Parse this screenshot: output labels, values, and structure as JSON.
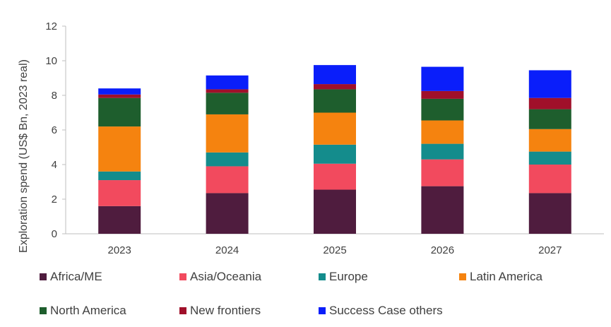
{
  "chart_data": {
    "type": "bar",
    "stacked": true,
    "title": "",
    "xlabel": "",
    "ylabel": "Exploration spend (US$ Bn, 2023 real)",
    "ylim": [
      0,
      12
    ],
    "yticks": [
      "0",
      "2",
      "4",
      "6",
      "8",
      "10",
      "12"
    ],
    "categories": [
      "2023",
      "2024",
      "2025",
      "2026",
      "2027"
    ],
    "series": [
      {
        "name": "Africa/ME",
        "color": "#4F1C3E",
        "values": [
          1.6,
          2.35,
          2.55,
          2.75,
          2.35
        ]
      },
      {
        "name": "Asia/Oceania",
        "color": "#F24A5E",
        "values": [
          1.5,
          1.55,
          1.5,
          1.55,
          1.65
        ]
      },
      {
        "name": "Europe",
        "color": "#148C8C",
        "values": [
          0.5,
          0.8,
          1.1,
          0.9,
          0.75
        ]
      },
      {
        "name": "Latin America",
        "color": "#F5830F",
        "values": [
          2.6,
          2.2,
          1.85,
          1.35,
          1.3
        ]
      },
      {
        "name": "North America",
        "color": "#1E5E2D",
        "values": [
          1.65,
          1.25,
          1.35,
          1.25,
          1.15
        ]
      },
      {
        "name": "New frontiers",
        "color": "#A0102A",
        "values": [
          0.2,
          0.2,
          0.3,
          0.45,
          0.65
        ]
      },
      {
        "name": "Success Case others",
        "color": "#0A1EFA",
        "values": [
          0.35,
          0.8,
          1.1,
          1.4,
          1.6
        ]
      }
    ],
    "legend_position": "bottom"
  }
}
